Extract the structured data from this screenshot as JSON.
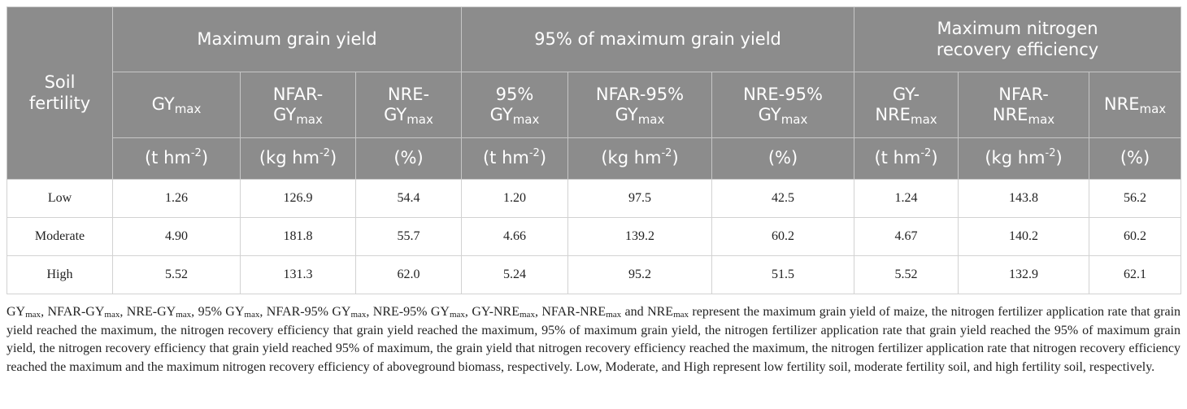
{
  "table": {
    "row_header": "Soil fertility",
    "groups": [
      "Maximum grain yield",
      "95% of maximum grain yield",
      "Maximum nitrogen recovery efficiency"
    ],
    "columns": [
      {
        "lead": "",
        "base": "GY",
        "sub": "max",
        "unit_base": "(t hm",
        "unit_sup": "-2",
        "unit_end": ")"
      },
      {
        "lead": "",
        "base": "NFAR-GY",
        "sub": "max",
        "unit_base": "(kg hm",
        "unit_sup": "-2",
        "unit_end": ")"
      },
      {
        "lead": "",
        "base": "NRE-GY",
        "sub": "max",
        "unit_base": "(%)",
        "unit_sup": "",
        "unit_end": ""
      },
      {
        "lead": "",
        "base": "95% GY",
        "sub": "max",
        "unit_base": "(t hm",
        "unit_sup": "-2",
        "unit_end": ")"
      },
      {
        "lead": "",
        "base": "NFAR-95% GY",
        "sub": "max",
        "unit_base": "(kg hm",
        "unit_sup": "-2",
        "unit_end": ")"
      },
      {
        "lead": "",
        "base": "NRE-95% GY",
        "sub": "max",
        "unit_base": "(%)",
        "unit_sup": "",
        "unit_end": ""
      },
      {
        "lead": "",
        "base": "GY-NRE",
        "sub": "max",
        "unit_base": "(t hm",
        "unit_sup": "-2",
        "unit_end": ")"
      },
      {
        "lead": "",
        "base": "NFAR-NRE",
        "sub": "max",
        "unit_base": "(kg hm",
        "unit_sup": "-2",
        "unit_end": ")"
      },
      {
        "lead": "",
        "base": "NRE",
        "sub": "max",
        "unit_base": "(%)",
        "unit_sup": "",
        "unit_end": ""
      }
    ],
    "rows": [
      {
        "label": "Low",
        "values": [
          "1.26",
          "126.9",
          "54.4",
          "1.20",
          "97.5",
          "42.5",
          "1.24",
          "143.8",
          "56.2"
        ]
      },
      {
        "label": "Moderate",
        "values": [
          "4.90",
          "181.8",
          "55.7",
          "4.66",
          "139.2",
          "60.2",
          "4.67",
          "140.2",
          "60.2"
        ]
      },
      {
        "label": "High",
        "values": [
          "5.52",
          "131.3",
          "62.0",
          "5.24",
          "95.2",
          "51.5",
          "5.52",
          "132.9",
          "62.1"
        ]
      }
    ]
  },
  "footnote": {
    "terms": [
      {
        "base": "GY",
        "sub": "max",
        "sep": ", "
      },
      {
        "base": "NFAR-GY",
        "sub": "max",
        "sep": ", "
      },
      {
        "base": "NRE-GY",
        "sub": "max",
        "sep": ", "
      },
      {
        "base": "95% GY",
        "sub": "max",
        "sep": ", "
      },
      {
        "base": "NFAR-95% GY",
        "sub": "max",
        "sep": ", "
      },
      {
        "base": "NRE-95% GY",
        "sub": "max",
        "sep": ", "
      },
      {
        "base": "GY-NRE",
        "sub": "max",
        "sep": ", "
      },
      {
        "base": "NFAR-NRE",
        "sub": "max",
        "sep": " and "
      },
      {
        "base": "NRE",
        "sub": "max",
        "sep": " "
      }
    ],
    "text": "represent the maximum grain yield of maize, the nitrogen fertilizer application rate that grain yield reached the maximum, the nitrogen recovery efficiency that grain yield reached the maximum, 95% of maximum grain yield, the nitrogen fertilizer application rate that grain yield reached the 95% of maximum grain yield, the nitrogen recovery efficiency that grain yield reached 95% of maximum, the grain yield that nitrogen recovery efficiency reached the maximum, the nitrogen fertilizer application rate that nitrogen recovery efficiency reached the maximum and the maximum nitrogen recovery efficiency of aboveground biomass, respectively. Low, Moderate, and High represent low fertility soil, moderate fertility soil, and high fertility soil, respectively."
  }
}
